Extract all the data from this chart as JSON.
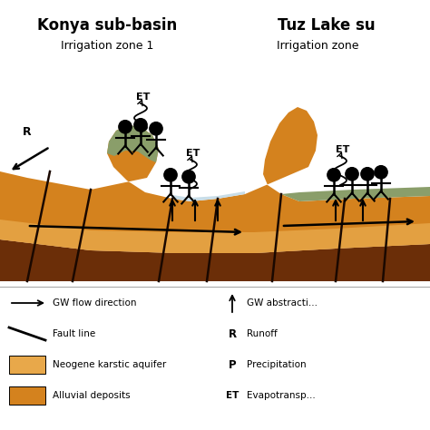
{
  "title_left": "Konya sub-basin",
  "title_right": "Tuz Lake su",
  "subtitle_left": "Irrigation zone 1",
  "subtitle_right": "Irrigation zone",
  "bg_color": "#ffffff",
  "alluvial_color": "#d4821e",
  "dark_soil_color": "#6b2e08",
  "aquifer_color": "#e8a84a",
  "water_color": "#c8dde8",
  "veg_color": "#8a9e6a",
  "legend_left": [
    "GW flow direction",
    "Fault line",
    "Neogene karstic aquifer",
    "Alluvial deposits"
  ],
  "legend_right_labels": [
    "GW abstracti...",
    "Runoff",
    "Precipitation",
    "Evapotransp..."
  ]
}
